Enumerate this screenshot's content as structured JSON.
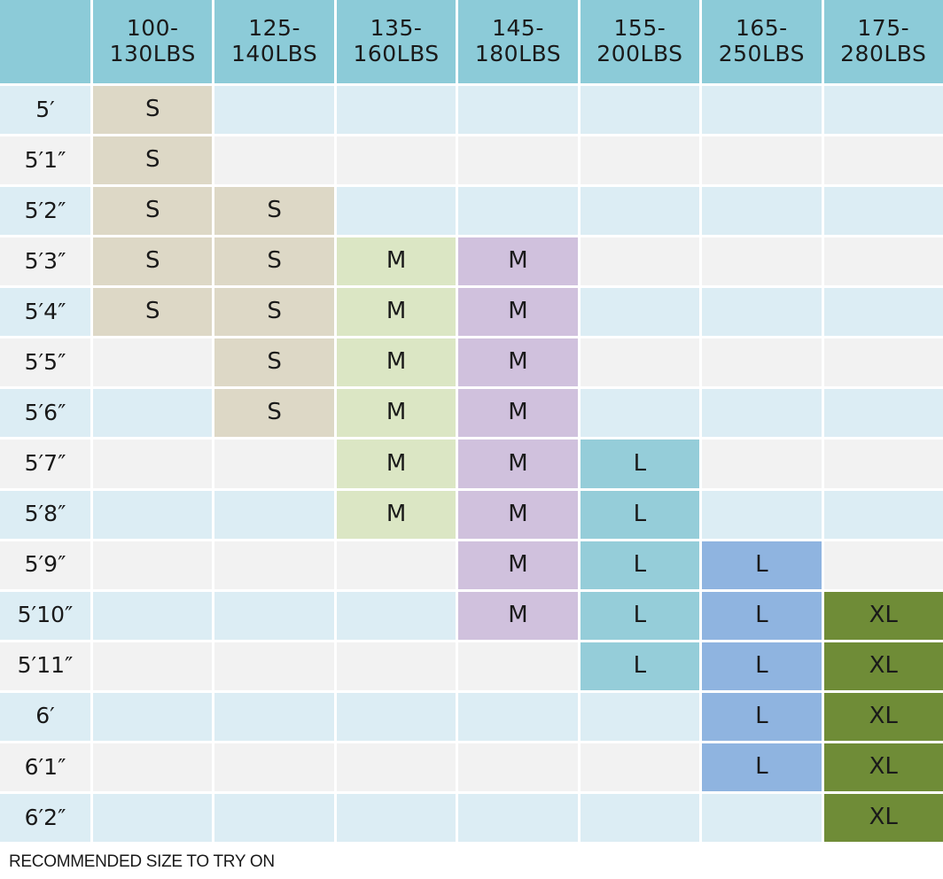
{
  "columns": [
    "100-\n130LBS",
    "125-\n140LBS",
    "135-\n160LBS",
    "145-\n180LBS",
    "155-\n200LBS",
    "165-\n250LBS",
    "175-\n280LBS"
  ],
  "colors": {
    "header": "#8ccbd8",
    "row_light": "#dcedf4",
    "row_gray": "#f2f2f2",
    "S": "#ddd8c6",
    "M_green": "#dbe6c4",
    "M_purple": "#d0c1dd",
    "L_teal": "#95cdd9",
    "L_blue": "#8fb4e0",
    "XL": "#6f8c37"
  },
  "rows": [
    {
      "height": "5′",
      "sizes": [
        "S",
        "",
        "",
        "",
        "",
        "",
        ""
      ]
    },
    {
      "height": "5′1″",
      "sizes": [
        "S",
        "",
        "",
        "",
        "",
        "",
        ""
      ]
    },
    {
      "height": "5′2″",
      "sizes": [
        "S",
        "S",
        "",
        "",
        "",
        "",
        ""
      ]
    },
    {
      "height": "5′3″",
      "sizes": [
        "S",
        "S",
        "M",
        "M",
        "",
        "",
        ""
      ]
    },
    {
      "height": "5′4″",
      "sizes": [
        "S",
        "S",
        "M",
        "M",
        "",
        "",
        ""
      ]
    },
    {
      "height": "5′5″",
      "sizes": [
        "",
        "S",
        "M",
        "M",
        "",
        "",
        ""
      ]
    },
    {
      "height": "5′6″",
      "sizes": [
        "",
        "S",
        "M",
        "M",
        "",
        "",
        ""
      ]
    },
    {
      "height": "5′7″",
      "sizes": [
        "",
        "",
        "M",
        "M",
        "L",
        "",
        ""
      ]
    },
    {
      "height": "5′8″",
      "sizes": [
        "",
        "",
        "M",
        "M",
        "L",
        "",
        ""
      ]
    },
    {
      "height": "5′9″",
      "sizes": [
        "",
        "",
        "",
        "M",
        "L",
        "L",
        ""
      ]
    },
    {
      "height": "5′10″",
      "sizes": [
        "",
        "",
        "",
        "M",
        "L",
        "L",
        "XL"
      ]
    },
    {
      "height": "5′11″",
      "sizes": [
        "",
        "",
        "",
        "",
        "L",
        "L",
        "XL"
      ]
    },
    {
      "height": "6′",
      "sizes": [
        "",
        "",
        "",
        "",
        "",
        "L",
        "XL"
      ]
    },
    {
      "height": "6′1″",
      "sizes": [
        "",
        "",
        "",
        "",
        "",
        "L",
        "XL"
      ]
    },
    {
      "height": "6′2″",
      "sizes": [
        "",
        "",
        "",
        "",
        "",
        "",
        "XL"
      ]
    }
  ],
  "footnote": "RECOMMENDED SIZE TO TRY ON"
}
